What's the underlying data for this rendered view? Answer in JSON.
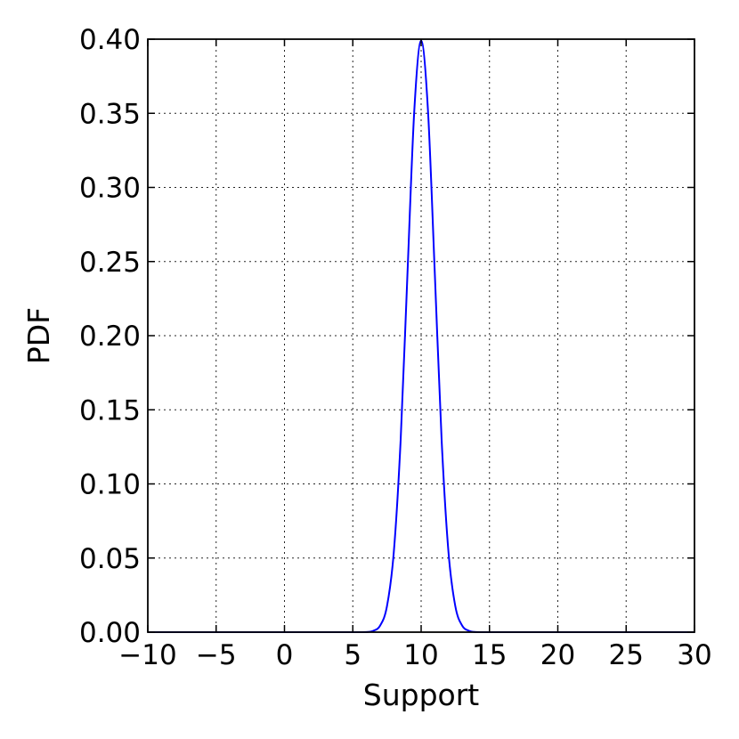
{
  "chart_data": {
    "type": "line",
    "xlabel": "Support",
    "ylabel": "PDF",
    "xlim": [
      -10,
      30
    ],
    "ylim": [
      0.0,
      0.4
    ],
    "x_ticks": [
      -10,
      -5,
      0,
      5,
      10,
      15,
      20,
      25,
      30
    ],
    "y_ticks": [
      0.0,
      0.05,
      0.1,
      0.15,
      0.2,
      0.25,
      0.3,
      0.35,
      0.4
    ],
    "x_tick_labels": [
      "−10",
      "−5",
      "0",
      "5",
      "10",
      "15",
      "20",
      "25",
      "30"
    ],
    "y_tick_labels": [
      "0.00",
      "0.05",
      "0.10",
      "0.15",
      "0.20",
      "0.25",
      "0.30",
      "0.35",
      "0.40"
    ],
    "grid": true,
    "series": [
      {
        "color": "#0000ff",
        "x": [
          -10,
          4,
          5,
          6,
          6.5,
          7,
          7.5,
          8,
          8.5,
          9,
          9.5,
          10,
          10.5,
          11,
          11.5,
          12,
          12.5,
          13,
          13.5,
          14,
          15,
          16,
          30
        ],
        "y": [
          0.0,
          0.0,
          0.0,
          0.0001,
          0.0009,
          0.0044,
          0.0175,
          0.054,
          0.1295,
          0.242,
          0.352,
          0.399,
          0.352,
          0.242,
          0.1295,
          0.054,
          0.0175,
          0.0044,
          0.0009,
          0.0001,
          0.0,
          0.0,
          0.0
        ]
      }
    ]
  }
}
